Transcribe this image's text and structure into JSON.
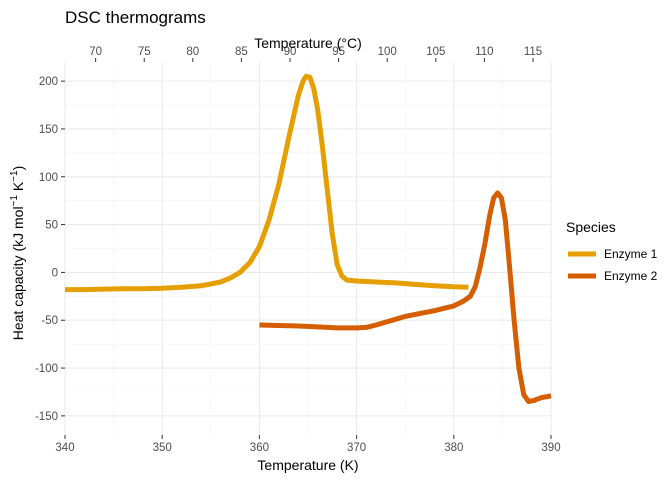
{
  "chart_data": {
    "type": "line",
    "title": "DSC thermograms",
    "xlabel": "Temperature (K)",
    "x2label": "Temperature (°C)",
    "ylabel": {
      "pre": "Heat capacity (kJ mol",
      "sup1": "−1",
      "mid": " K",
      "sup2": "−1",
      "post": ")"
    },
    "xlim": [
      340,
      390
    ],
    "ylim": [
      -170,
      220
    ],
    "x_ticks": [
      340,
      350,
      360,
      370,
      380,
      390
    ],
    "x2_ticks": [
      70,
      75,
      80,
      85,
      90,
      95,
      100,
      105,
      110,
      115
    ],
    "y_ticks": [
      -150,
      -100,
      -50,
      0,
      50,
      100,
      150,
      200
    ],
    "grid": true,
    "legend": {
      "title": "Species",
      "position": "right"
    },
    "series": [
      {
        "name": "Enzyme 1",
        "color": "#E69F00",
        "points": [
          [
            340,
            -18
          ],
          [
            342,
            -18
          ],
          [
            344,
            -17.5
          ],
          [
            346,
            -17
          ],
          [
            348,
            -17
          ],
          [
            350,
            -16.5
          ],
          [
            352,
            -15.5
          ],
          [
            354,
            -14
          ],
          [
            355,
            -12
          ],
          [
            356,
            -10
          ],
          [
            357,
            -6
          ],
          [
            358,
            0
          ],
          [
            359,
            10
          ],
          [
            360,
            27
          ],
          [
            361,
            55
          ],
          [
            362,
            92
          ],
          [
            363,
            140
          ],
          [
            364,
            185
          ],
          [
            364.5,
            200
          ],
          [
            364.8,
            205
          ],
          [
            365.2,
            204
          ],
          [
            365.6,
            192
          ],
          [
            366,
            170
          ],
          [
            366.5,
            130
          ],
          [
            367,
            85
          ],
          [
            367.5,
            40
          ],
          [
            368,
            8
          ],
          [
            368.5,
            -4
          ],
          [
            369,
            -8
          ],
          [
            370,
            -9
          ],
          [
            372,
            -10
          ],
          [
            374,
            -11
          ],
          [
            376,
            -12.5
          ],
          [
            378,
            -14
          ],
          [
            380,
            -15
          ],
          [
            381.5,
            -15.5
          ]
        ]
      },
      {
        "name": "Enzyme 2",
        "color": "#D55E00",
        "points": [
          [
            360,
            -55
          ],
          [
            362,
            -55.5
          ],
          [
            364,
            -56
          ],
          [
            366,
            -57
          ],
          [
            368,
            -58
          ],
          [
            370,
            -58
          ],
          [
            371,
            -57.5
          ],
          [
            372,
            -55
          ],
          [
            373,
            -52
          ],
          [
            374,
            -49
          ],
          [
            375,
            -46
          ],
          [
            376,
            -44
          ],
          [
            378,
            -40
          ],
          [
            380,
            -35
          ],
          [
            381,
            -30
          ],
          [
            381.7,
            -25
          ],
          [
            382.2,
            -15
          ],
          [
            382.7,
            5
          ],
          [
            383.2,
            30
          ],
          [
            383.7,
            60
          ],
          [
            384.1,
            78
          ],
          [
            384.5,
            83
          ],
          [
            384.9,
            78
          ],
          [
            385.3,
            55
          ],
          [
            385.7,
            10
          ],
          [
            386.2,
            -50
          ],
          [
            386.7,
            -100
          ],
          [
            387.2,
            -128
          ],
          [
            387.7,
            -135
          ],
          [
            388.2,
            -134
          ],
          [
            389,
            -131
          ],
          [
            390,
            -129
          ]
        ]
      }
    ]
  }
}
